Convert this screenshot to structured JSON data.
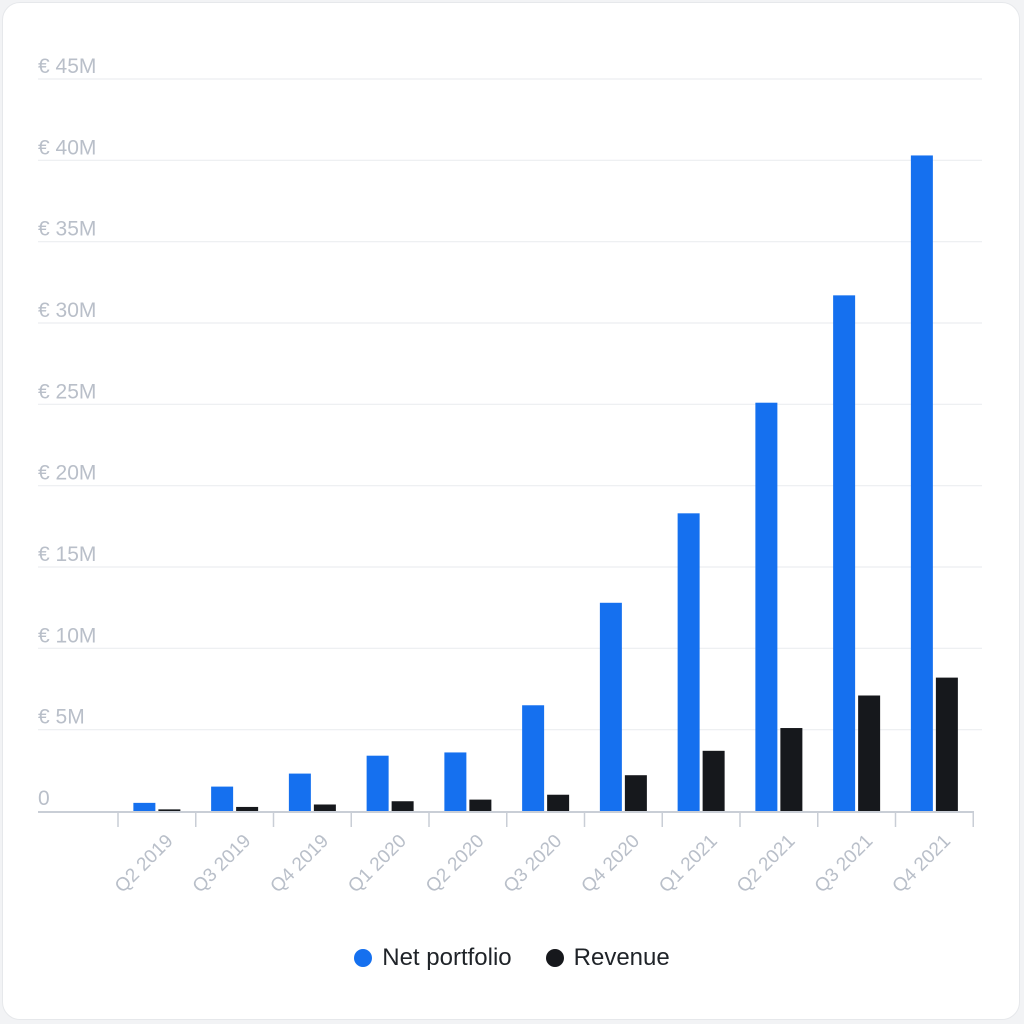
{
  "chart_data": {
    "type": "bar",
    "title": "",
    "xlabel": "",
    "ylabel": "",
    "categories": [
      "Q2 2019",
      "Q3 2019",
      "Q4 2019",
      "Q1 2020",
      "Q2 2020",
      "Q3 2020",
      "Q4 2020",
      "Q1 2021",
      "Q2 2021",
      "Q3 2021",
      "Q4 2021"
    ],
    "series": [
      {
        "name": "Net portfolio",
        "color": "#1570ef",
        "values": [
          0.5,
          1.5,
          2.3,
          3.4,
          3.6,
          6.5,
          12.8,
          18.3,
          25.1,
          31.7,
          40.3
        ]
      },
      {
        "name": "Revenue",
        "color": "#16181c",
        "values": [
          0.1,
          0.25,
          0.4,
          0.6,
          0.7,
          1.0,
          2.2,
          3.7,
          5.1,
          7.1,
          8.2
        ]
      }
    ],
    "ylim": [
      0,
      45
    ],
    "yticks": [
      0,
      5,
      10,
      15,
      20,
      25,
      30,
      35,
      40,
      45
    ],
    "ytick_labels": [
      "0",
      "€ 5M",
      "€ 10M",
      "€ 15M",
      "€ 20M",
      "€ 25M",
      "€ 30M",
      "€ 35M",
      "€ 40M",
      "€ 45M"
    ],
    "grid": true,
    "legend_position": "bottom-center"
  }
}
